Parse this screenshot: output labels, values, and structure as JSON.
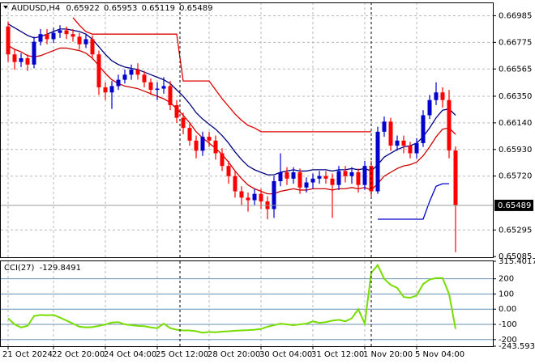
{
  "chart_data": [
    {
      "type": "candlestick",
      "title": "AUDUSD,H4",
      "categories": [
        "21 Oct 2024",
        null,
        null,
        null,
        null,
        null,
        null,
        "22 Oct 20:00",
        null,
        null,
        null,
        null,
        null,
        null,
        null,
        "24 Oct 04:00",
        null,
        null,
        null,
        null,
        null,
        null,
        null,
        "25 Oct 12:00",
        null,
        null,
        null,
        null,
        null,
        null,
        null,
        "28 Oct 20:00",
        null,
        null,
        null,
        null,
        null,
        null,
        null,
        "30 Oct 04:00",
        null,
        null,
        null,
        null,
        null,
        null,
        null,
        "31 Oct 12:00",
        null,
        null,
        null,
        null,
        null,
        null,
        null,
        "1 Nov 20:00",
        null,
        null,
        null,
        null,
        null,
        null,
        null,
        "5 Nov 04:00",
        null,
        null,
        null,
        null,
        null,
        null
      ],
      "open": [
        0.669,
        0.6668,
        0.6662,
        0.6665,
        0.666,
        0.6678,
        0.6684,
        0.668,
        0.6685,
        0.6687,
        0.6684,
        0.6682,
        0.6676,
        0.668,
        0.6668,
        0.6642,
        0.6638,
        0.6643,
        0.6648,
        0.6652,
        0.6656,
        0.6652,
        0.6646,
        0.664,
        0.6641,
        0.6643,
        0.6628,
        0.6618,
        0.661,
        0.66,
        0.6592,
        0.6603,
        0.66,
        0.659,
        0.658,
        0.6572,
        0.656,
        0.6555,
        0.6553,
        0.6558,
        0.6552,
        0.6546,
        0.6568,
        0.6575,
        0.657,
        0.6575,
        0.6563,
        0.6567,
        0.657,
        0.6572,
        0.657,
        0.6565,
        0.6576,
        0.6572,
        0.6575,
        0.6565,
        0.658,
        0.656,
        0.6607,
        0.6615,
        0.6596,
        0.66,
        0.6596,
        0.659,
        0.6598,
        0.662,
        0.6632,
        0.6638,
        0.6632,
        0.65922
      ],
      "high": [
        0.6694,
        0.6672,
        0.6669,
        0.6668,
        0.6682,
        0.6688,
        0.6688,
        0.6689,
        0.6691,
        0.669,
        0.6688,
        0.6685,
        0.6684,
        0.6683,
        0.6671,
        0.6646,
        0.6647,
        0.6652,
        0.6656,
        0.666,
        0.6661,
        0.6655,
        0.6649,
        0.6646,
        0.665,
        0.6647,
        0.6632,
        0.6622,
        0.6614,
        0.6604,
        0.6607,
        0.6607,
        0.6604,
        0.6594,
        0.6584,
        0.6576,
        0.6564,
        0.6559,
        0.6562,
        0.6562,
        0.6556,
        0.6572,
        0.659,
        0.6579,
        0.6579,
        0.6578,
        0.6571,
        0.6574,
        0.6576,
        0.6576,
        0.6574,
        0.658,
        0.658,
        0.6579,
        0.6578,
        0.6584,
        0.6584,
        0.6611,
        0.6619,
        0.6618,
        0.6604,
        0.6604,
        0.6599,
        0.6602,
        0.6624,
        0.6636,
        0.6646,
        0.6642,
        0.664,
        0.65953
      ],
      "low": [
        0.6662,
        0.6656,
        0.6658,
        0.6655,
        0.6657,
        0.6675,
        0.6676,
        0.6677,
        0.6681,
        0.668,
        0.6678,
        0.6672,
        0.6673,
        0.6664,
        0.6636,
        0.6632,
        0.6625,
        0.664,
        0.6645,
        0.6648,
        0.6648,
        0.6642,
        0.6636,
        0.6632,
        0.6637,
        0.6624,
        0.6614,
        0.6605,
        0.6596,
        0.6586,
        0.6588,
        0.6595,
        0.6585,
        0.6576,
        0.6566,
        0.6555,
        0.6549,
        0.6544,
        0.6549,
        0.6546,
        0.6538,
        0.6539,
        0.6564,
        0.6565,
        0.6566,
        0.6558,
        0.6559,
        0.6562,
        0.6566,
        0.6566,
        0.6539,
        0.6561,
        0.6567,
        0.6566,
        0.6559,
        0.6561,
        0.6556,
        0.6558,
        0.6603,
        0.6592,
        0.6592,
        0.659,
        0.6586,
        0.6586,
        0.6595,
        0.6617,
        0.6628,
        0.6626,
        0.6586,
        0.65119
      ],
      "close": [
        0.6668,
        0.6662,
        0.6665,
        0.666,
        0.6678,
        0.6684,
        0.668,
        0.6685,
        0.6687,
        0.6684,
        0.6682,
        0.6676,
        0.668,
        0.6668,
        0.6642,
        0.6638,
        0.6643,
        0.6648,
        0.6652,
        0.6656,
        0.6652,
        0.6646,
        0.664,
        0.6641,
        0.6643,
        0.6628,
        0.6618,
        0.661,
        0.66,
        0.6592,
        0.6603,
        0.66,
        0.659,
        0.658,
        0.6572,
        0.656,
        0.6555,
        0.6553,
        0.6558,
        0.6552,
        0.6546,
        0.6568,
        0.6575,
        0.657,
        0.6575,
        0.6563,
        0.6567,
        0.657,
        0.6572,
        0.657,
        0.6565,
        0.6576,
        0.6572,
        0.6575,
        0.6565,
        0.658,
        0.656,
        0.6607,
        0.6615,
        0.6596,
        0.66,
        0.6596,
        0.659,
        0.6598,
        0.662,
        0.6632,
        0.6638,
        0.6632,
        0.65922,
        0.65489
      ],
      "up_color": "#0000cc",
      "down_color": "#ff0000",
      "series": [
        {
          "color": "#00007f",
          "values": [
            0.6692,
            0.6689,
            0.6686,
            0.6683,
            0.6681,
            0.6682,
            0.6684,
            0.6686,
            0.6688,
            0.6688,
            0.6687,
            0.6686,
            0.6684,
            0.668,
            0.6674,
            0.6668,
            0.6663,
            0.666,
            0.6658,
            0.6657,
            0.6656,
            0.6654,
            0.6652,
            0.665,
            0.6648,
            0.6645,
            0.664,
            0.6635,
            0.6629,
            0.6622,
            0.6617,
            0.6613,
            0.6609,
            0.6604,
            0.6598,
            0.6591,
            0.6585,
            0.658,
            0.6577,
            0.6575,
            0.6573,
            0.6573,
            0.6575,
            0.6576,
            0.6577,
            0.6576,
            0.6576,
            0.6577,
            0.6577,
            0.6577,
            0.6576,
            0.6577,
            0.6577,
            0.6578,
            0.6577,
            0.6578,
            0.6576,
            0.6581,
            0.6587,
            0.659,
            0.6593,
            0.6595,
            0.6596,
            0.6598,
            0.6603,
            0.661,
            0.6618,
            0.6624,
            0.6625,
            0.662
          ]
        },
        {
          "color": "#cc0000",
          "values": [
            0.6675,
            0.6672,
            0.667,
            0.6667,
            0.6666,
            0.6667,
            0.6669,
            0.6671,
            0.6673,
            0.6673,
            0.6672,
            0.6671,
            0.6669,
            0.6665,
            0.6659,
            0.6653,
            0.6648,
            0.6645,
            0.6643,
            0.6642,
            0.6641,
            0.6639,
            0.6637,
            0.6635,
            0.6633,
            0.663,
            0.6625,
            0.662,
            0.6614,
            0.6607,
            0.6602,
            0.6598,
            0.6594,
            0.6589,
            0.6583,
            0.6576,
            0.657,
            0.6565,
            0.6562,
            0.656,
            0.6558,
            0.6558,
            0.656,
            0.6561,
            0.6562,
            0.6561,
            0.6561,
            0.6562,
            0.6562,
            0.6562,
            0.6561,
            0.6562,
            0.6562,
            0.6563,
            0.6562,
            0.6563,
            0.6561,
            0.6566,
            0.6572,
            0.6575,
            0.6578,
            0.658,
            0.6581,
            0.6583,
            0.6588,
            0.6595,
            0.6603,
            0.6609,
            0.661,
            0.6605
          ]
        },
        {
          "color": "#e00000",
          "values": [
            null,
            null,
            null,
            null,
            null,
            null,
            null,
            null,
            null,
            null,
            0.6697,
            0.6691,
            0.6686,
            0.6684,
            0.6684,
            0.6684,
            0.6684,
            0.6684,
            0.6684,
            0.6684,
            0.6684,
            0.6684,
            0.6684,
            0.6684,
            0.6684,
            0.6684,
            0.6684,
            0.6647,
            0.6647,
            0.6647,
            0.6647,
            0.6647,
            0.664,
            0.6633,
            0.6627,
            0.6621,
            0.6616,
            0.6612,
            0.661,
            0.6607,
            0.6607,
            0.6607,
            0.6607,
            0.6607,
            0.6607,
            0.6607,
            0.6607,
            0.6607,
            0.6607,
            0.6607,
            0.6607,
            0.6607,
            0.6607,
            0.6607,
            0.6607,
            0.6607,
            0.6607,
            null,
            null,
            null,
            null,
            null,
            null,
            null,
            null,
            null,
            null,
            null,
            null,
            null
          ]
        },
        {
          "color": "#0000cc",
          "values": [
            null,
            null,
            null,
            null,
            null,
            null,
            null,
            null,
            null,
            null,
            null,
            null,
            null,
            null,
            null,
            null,
            null,
            null,
            null,
            null,
            null,
            null,
            null,
            null,
            null,
            null,
            null,
            null,
            null,
            null,
            null,
            null,
            null,
            null,
            null,
            null,
            null,
            null,
            null,
            null,
            null,
            null,
            null,
            null,
            null,
            null,
            null,
            null,
            null,
            null,
            null,
            null,
            null,
            null,
            null,
            null,
            null,
            0.6538,
            0.6538,
            0.6538,
            0.6538,
            0.6538,
            0.6538,
            0.6538,
            0.6538,
            0.6552,
            0.6564,
            0.6566,
            0.6566,
            null
          ]
        }
      ],
      "ylim": [
        0.6508,
        0.6709
      ],
      "yticks": [
        0.66985,
        0.66775,
        0.66565,
        {
          "value": 0.6635,
          "label": "0.66350"
        },
        {
          "value": 0.6614,
          "label": "0.66140"
        },
        {
          "value": 0.6593,
          "label": "0.65930"
        },
        {
          "value": 0.6572,
          "label": "0.65720"
        },
        0.65295,
        0.65085
      ],
      "grid": true
    },
    {
      "type": "line",
      "title": "CCI(27)",
      "color": "#77dd00",
      "values": [
        -60,
        -100,
        -120,
        -110,
        -45,
        -38,
        -40,
        -38,
        -55,
        -75,
        -95,
        -115,
        -120,
        -118,
        -110,
        -100,
        -88,
        -85,
        -100,
        -105,
        -110,
        -112,
        -120,
        -125,
        -95,
        -125,
        -135,
        -140,
        -140,
        -145,
        -155,
        -150,
        -152,
        -148,
        -145,
        -142,
        -140,
        -138,
        -135,
        -130,
        -115,
        -105,
        -95,
        -100,
        -105,
        -100,
        -95,
        -80,
        -90,
        -85,
        -75,
        -70,
        -80,
        -60,
        0,
        -95,
        240,
        290,
        200,
        160,
        140,
        80,
        75,
        90,
        165,
        195,
        205,
        205,
        100,
        -129.8491
      ],
      "ylim": [
        -243.5938,
        315.4017
      ],
      "yticks": [
        315.4017,
        200,
        100,
        {
          "value": 0,
          "label": "0.00"
        },
        -100,
        -200,
        -243.5938
      ],
      "grid": true
    }
  ]
}
